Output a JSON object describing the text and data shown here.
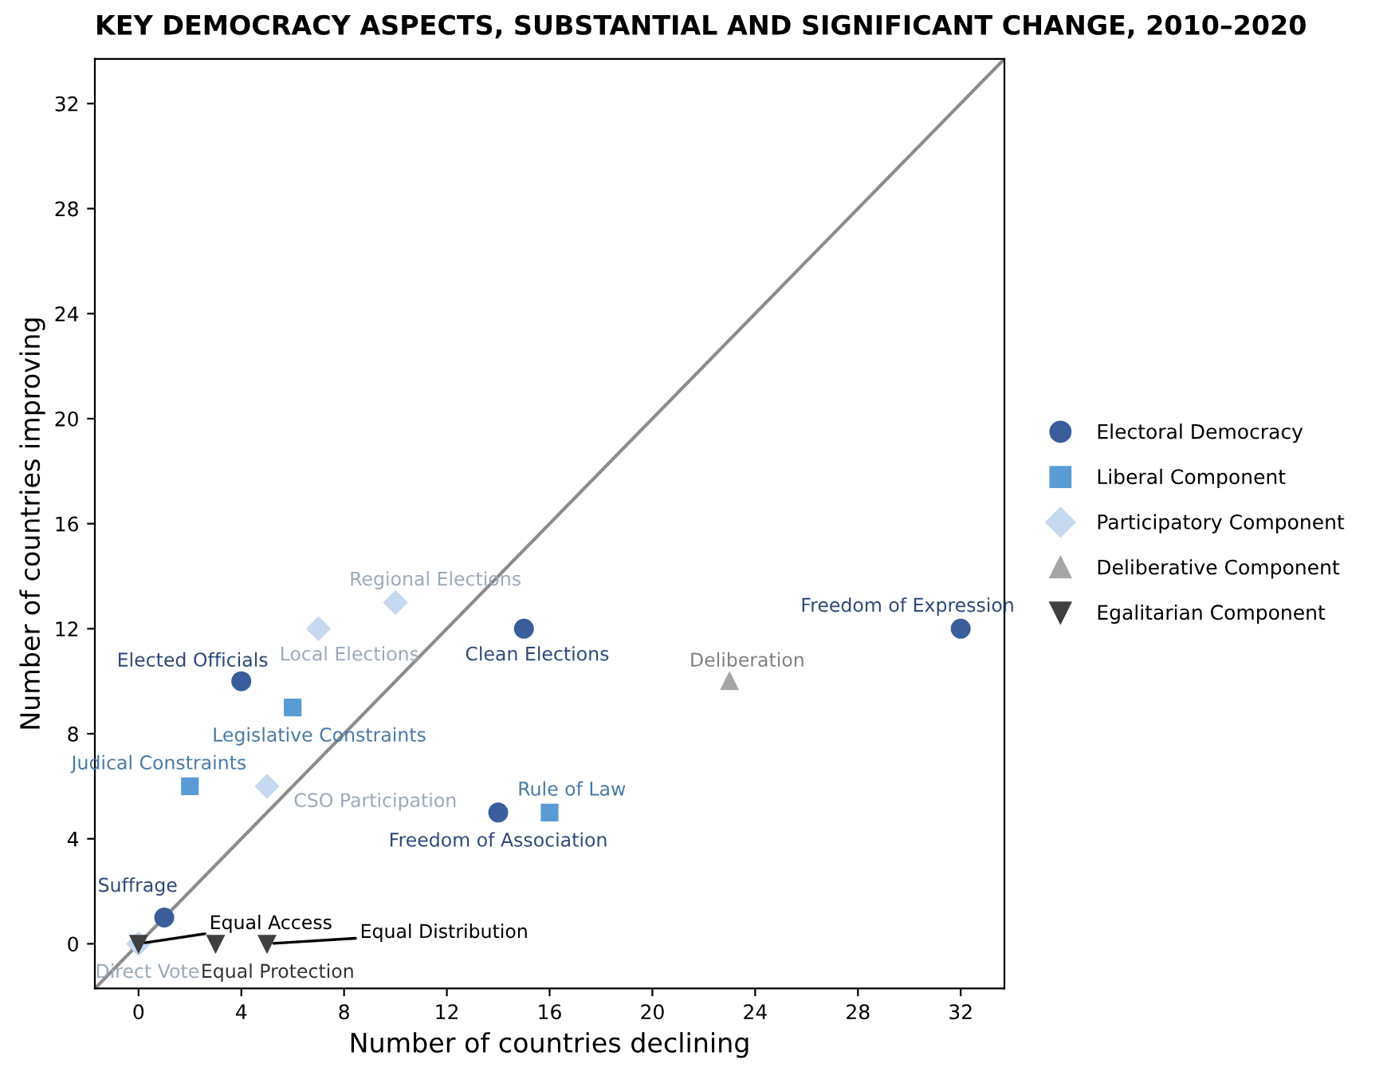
{
  "chart_data": {
    "type": "scatter",
    "title": "KEY DEMOCRACY ASPECTS, SUBSTANTIAL AND SIGNIFICANT CHANGE, 2010–2020",
    "xlabel": "Number of countries declining",
    "ylabel": "Number of countries improving",
    "xlim": [
      -1.7,
      33.7
    ],
    "ylim": [
      -1.7,
      33.7
    ],
    "xticks": [
      0,
      4,
      8,
      12,
      16,
      20,
      24,
      28,
      32
    ],
    "yticks": [
      0,
      4,
      8,
      12,
      16,
      20,
      24,
      28,
      32
    ],
    "grid": false,
    "legend": "right",
    "series": [
      {
        "type": "line",
        "color": "#8c8c8c",
        "x": [
          -1.7,
          33.7
        ],
        "values": [
          -1.7,
          33.7
        ],
        "marker": "none",
        "line_style": "solid"
      },
      {
        "name": "Electoral Democracy",
        "color": "#3a5e9c",
        "marker": "circle",
        "x": [
          1,
          4,
          15,
          14,
          32
        ],
        "values": [
          1,
          10,
          12,
          5,
          12
        ]
      },
      {
        "name": "Liberal Component",
        "color": "#5b9bd5",
        "marker": "square",
        "x": [
          6,
          2,
          16
        ],
        "values": [
          9,
          6,
          5
        ]
      },
      {
        "name": "Participatory Component",
        "color": "#c6d9f0",
        "marker": "diamond",
        "x": [
          10,
          7,
          5,
          0
        ],
        "values": [
          13,
          12,
          6,
          0
        ]
      },
      {
        "name": "Deliberative Component",
        "color": "#a6a6a6",
        "marker": "triangle",
        "x": [
          23
        ],
        "values": [
          10
        ]
      },
      {
        "name": "Egalitarian Component",
        "color": "#404040",
        "marker": "triangle_down",
        "x": [
          0,
          3,
          5
        ],
        "values": [
          0,
          0,
          0
        ]
      }
    ],
    "annotations": [
      {
        "text": "Suffrage",
        "x": 1,
        "y": 1
      },
      {
        "text": "Elected Officials",
        "x": 4,
        "y": 10
      },
      {
        "text": "Clean Elections",
        "x": 15,
        "y": 12
      },
      {
        "text": "Freedom of Association",
        "x": 14,
        "y": 5
      },
      {
        "text": "Freedom of Expression",
        "x": 32,
        "y": 12
      },
      {
        "text": "Legislative Constraints",
        "x": 6,
        "y": 9
      },
      {
        "text": "Judical Constraints",
        "x": 2,
        "y": 6
      },
      {
        "text": "Rule of Law",
        "x": 16,
        "y": 5
      },
      {
        "text": "Regional Elections",
        "x": 10,
        "y": 13
      },
      {
        "text": "Local Elections",
        "x": 7,
        "y": 12
      },
      {
        "text": "CSO Participation",
        "x": 5,
        "y": 6
      },
      {
        "text": "Direct Vote",
        "x": 0,
        "y": 0
      },
      {
        "text": "Deliberation",
        "x": 23,
        "y": 10
      },
      {
        "text": "Equal Access",
        "x": 0,
        "y": 0
      },
      {
        "text": "Equal Protection",
        "x": 3,
        "y": 0
      },
      {
        "text": "Equal Distribution",
        "x": 5,
        "y": 0
      }
    ]
  }
}
